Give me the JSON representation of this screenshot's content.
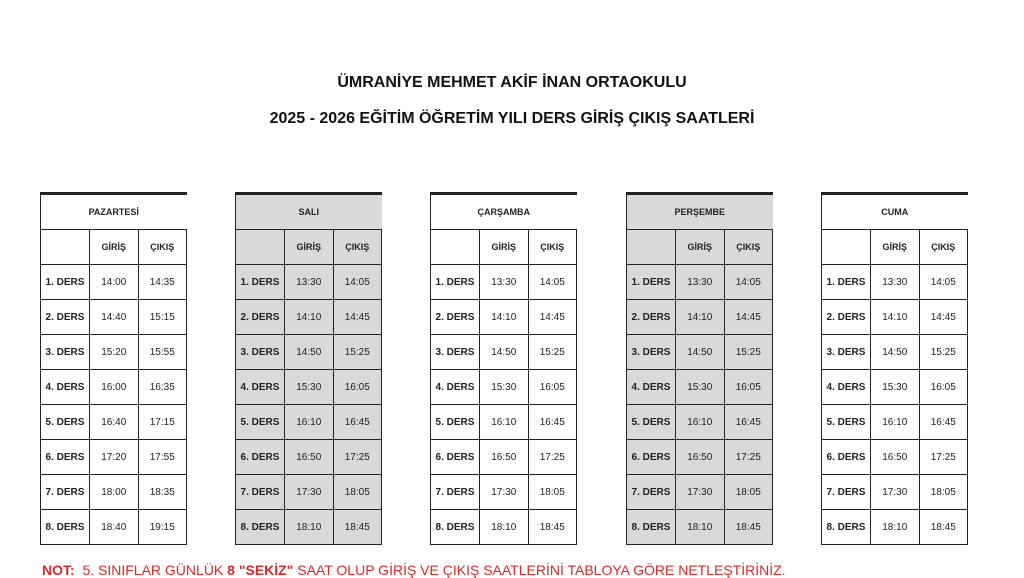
{
  "header": {
    "line1": "ÜMRANİYE MEHMET AKİF İNAN ORTAOKULU",
    "line2": "2025 - 2026 EĞİTİM ÖĞRETİM YILI DERS GİRİŞ ÇIKIŞ SAATLERİ"
  },
  "columns": {
    "giris": "GİRİŞ",
    "cikis": "ÇIKIŞ"
  },
  "days": [
    {
      "name": "PAZARTESİ",
      "shaded": false,
      "rows": [
        [
          "1. DERS",
          "14:00",
          "14:35"
        ],
        [
          "2. DERS",
          "14:40",
          "15:15"
        ],
        [
          "3. DERS",
          "15:20",
          "15:55"
        ],
        [
          "4. DERS",
          "16:00",
          "16:35"
        ],
        [
          "5. DERS",
          "16:40",
          "17:15"
        ],
        [
          "6. DERS",
          "17:20",
          "17:55"
        ],
        [
          "7. DERS",
          "18:00",
          "18:35"
        ],
        [
          "8. DERS",
          "18:40",
          "19:15"
        ]
      ]
    },
    {
      "name": "SALI",
      "shaded": true,
      "rows": [
        [
          "1. DERS",
          "13:30",
          "14:05"
        ],
        [
          "2. DERS",
          "14:10",
          "14:45"
        ],
        [
          "3. DERS",
          "14:50",
          "15:25"
        ],
        [
          "4. DERS",
          "15:30",
          "16:05"
        ],
        [
          "5. DERS",
          "16:10",
          "16:45"
        ],
        [
          "6. DERS",
          "16:50",
          "17:25"
        ],
        [
          "7. DERS",
          "17:30",
          "18:05"
        ],
        [
          "8. DERS",
          "18:10",
          "18:45"
        ]
      ]
    },
    {
      "name": "ÇARŞAMBA",
      "shaded": false,
      "rows": [
        [
          "1. DERS",
          "13:30",
          "14:05"
        ],
        [
          "2. DERS",
          "14:10",
          "14:45"
        ],
        [
          "3. DERS",
          "14:50",
          "15:25"
        ],
        [
          "4. DERS",
          "15:30",
          "16:05"
        ],
        [
          "5. DERS",
          "16:10",
          "16:45"
        ],
        [
          "6. DERS",
          "16:50",
          "17:25"
        ],
        [
          "7. DERS",
          "17:30",
          "18:05"
        ],
        [
          "8. DERS",
          "18:10",
          "18:45"
        ]
      ]
    },
    {
      "name": "PERŞEMBE",
      "shaded": true,
      "rows": [
        [
          "1. DERS",
          "13:30",
          "14:05"
        ],
        [
          "2. DERS",
          "14:10",
          "14:45"
        ],
        [
          "3. DERS",
          "14:50",
          "15:25"
        ],
        [
          "4. DERS",
          "15:30",
          "16:05"
        ],
        [
          "5. DERS",
          "16:10",
          "16:45"
        ],
        [
          "6. DERS",
          "16:50",
          "17:25"
        ],
        [
          "7. DERS",
          "17:30",
          "18:05"
        ],
        [
          "8. DERS",
          "18:10",
          "18:45"
        ]
      ]
    },
    {
      "name": "CUMA",
      "shaded": false,
      "rows": [
        [
          "1. DERS",
          "13:30",
          "14:05"
        ],
        [
          "2. DERS",
          "14:10",
          "14:45"
        ],
        [
          "3. DERS",
          "14:50",
          "15:25"
        ],
        [
          "4. DERS",
          "15:30",
          "16:05"
        ],
        [
          "5. DERS",
          "16:10",
          "16:45"
        ],
        [
          "6. DERS",
          "16:50",
          "17:25"
        ],
        [
          "7. DERS",
          "17:30",
          "18:05"
        ],
        [
          "8. DERS",
          "18:10",
          "18:45"
        ]
      ]
    }
  ],
  "note": {
    "label": "NOT:",
    "text1": "5. SINIFLAR GÜNLÜK",
    "bold": "8 \"SEKİZ\"",
    "text2": "SAAT OLUP GİRİŞ VE ÇIKIŞ SAATLERİNİ TABLOYA GÖRE NETLEŞTİRİNİZ.",
    "color": "#d9282a"
  }
}
